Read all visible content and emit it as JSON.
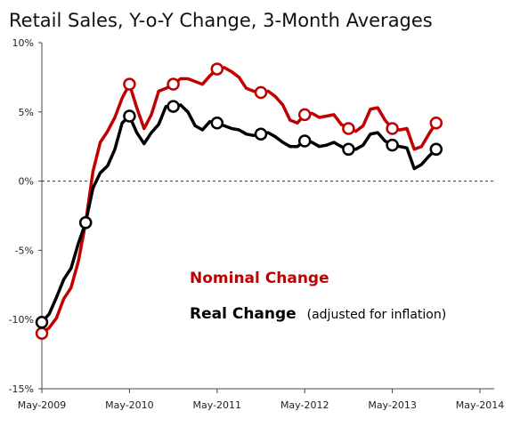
{
  "chart_data": {
    "type": "line",
    "title": "Retail Sales, Y-o-Y Change, 3-Month Averages",
    "xlabel": "",
    "ylabel": "",
    "ylim": [
      -15,
      10
    ],
    "y_ticks": [
      "10%",
      "5%",
      "0%",
      "-5%",
      "-10%",
      "-15%"
    ],
    "y_tick_values": [
      10,
      5,
      0,
      -5,
      -10,
      -15
    ],
    "x_ticks": [
      "May-2009",
      "May-2010",
      "May-2011",
      "May-2012",
      "May-2013",
      "May-2014"
    ],
    "x_tick_index": [
      0,
      12,
      24,
      36,
      48,
      60
    ],
    "grid": false,
    "zero_line": "dashed",
    "marker_every": 6,
    "series": [
      {
        "name": "Nominal Change",
        "color": "#c00000",
        "values": [
          -11.0,
          -10.6,
          -9.9,
          -8.5,
          -7.7,
          -5.8,
          -3.0,
          0.7,
          2.8,
          3.6,
          4.6,
          6.0,
          7.0,
          5.3,
          3.8,
          4.8,
          6.5,
          6.7,
          7.0,
          7.4,
          7.4,
          7.2,
          7.0,
          7.6,
          8.1,
          8.2,
          7.9,
          7.5,
          6.7,
          6.5,
          6.4,
          6.5,
          6.1,
          5.5,
          4.4,
          4.2,
          4.8,
          4.9,
          4.6,
          4.7,
          4.8,
          4.1,
          3.8,
          3.6,
          4.0,
          5.2,
          5.3,
          4.4,
          3.8,
          3.7,
          3.8,
          2.3,
          2.5,
          3.4,
          4.2
        ]
      },
      {
        "name": "Real Change (adjusted for inflation)",
        "color": "#000000",
        "values": [
          -10.2,
          -9.6,
          -8.4,
          -7.1,
          -6.3,
          -4.5,
          -3.0,
          -0.5,
          0.6,
          1.1,
          2.3,
          4.2,
          4.7,
          3.5,
          2.7,
          3.5,
          4.1,
          5.4,
          5.4,
          5.5,
          5.0,
          4.0,
          3.7,
          4.3,
          4.2,
          4.0,
          3.8,
          3.7,
          3.4,
          3.3,
          3.4,
          3.5,
          3.2,
          2.8,
          2.5,
          2.5,
          2.9,
          2.8,
          2.5,
          2.6,
          2.8,
          2.5,
          2.3,
          2.3,
          2.6,
          3.4,
          3.5,
          2.9,
          2.6,
          2.5,
          2.4,
          0.9,
          1.2,
          1.8,
          2.3
        ]
      }
    ]
  },
  "legend": {
    "nominal_label": "Nominal Change",
    "real_label": "Real Change",
    "real_note": "(adjusted for inflation)"
  }
}
